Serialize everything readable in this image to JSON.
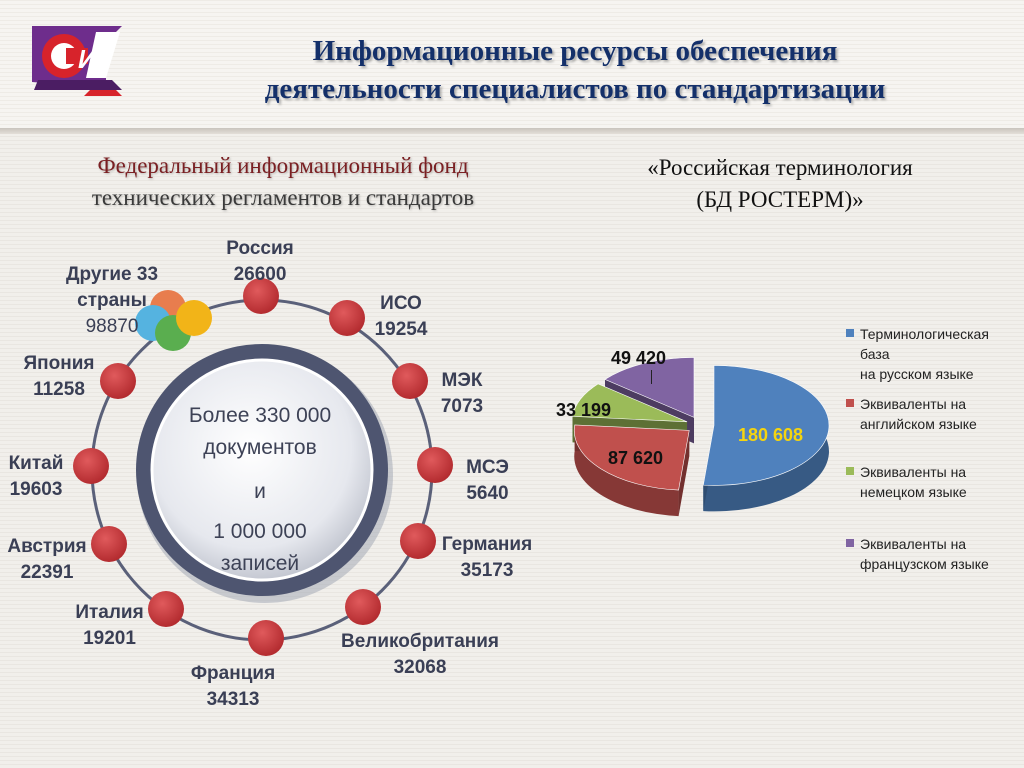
{
  "header": {
    "title_line1": "Информационные ресурсы обеспечения",
    "title_line2": "деятельности  специалистов по стандартизации",
    "logo_text": "СТИ"
  },
  "left": {
    "subtitle_line1": "Федеральный информационный фонд",
    "subtitle_line2": "технических регламентов и стандартов",
    "center_line1": "Более 330 000",
    "center_line2": "документов",
    "center_line3": "и",
    "center_line4": "1 000 000",
    "center_line5": "записей",
    "nodes": [
      {
        "name": "Россия",
        "value": "26600"
      },
      {
        "name": "ИСО",
        "value": "19254"
      },
      {
        "name": "МЭК",
        "value": "7073"
      },
      {
        "name": "МСЭ",
        "value": "5640"
      },
      {
        "name": "Германия",
        "value": "35173"
      },
      {
        "name": "Великобритания",
        "value": "32068"
      },
      {
        "name": "Франция",
        "value": "34313"
      },
      {
        "name": "Италия",
        "value": "19201"
      },
      {
        "name": "Австрия",
        "value": "22391"
      },
      {
        "name": "Китай",
        "value": "19603"
      },
      {
        "name": "Япония",
        "value": "11258"
      },
      {
        "name_line1": "Другие 33",
        "name_line2": "страны",
        "value": "98870"
      }
    ],
    "colors": {
      "node": "#c7393c",
      "ring": "#4e5570",
      "bubble_orange": "#e87d4e",
      "bubble_blue": "#55b3e0",
      "bubble_green": "#5aae4f",
      "bubble_yellow": "#f2b418"
    }
  },
  "right": {
    "subtitle_line1": "«Российская терминология",
    "subtitle_line2": "(БД РОСТЕРМ)»"
  },
  "chart_data": {
    "type": "pie",
    "values": [
      180608,
      87620,
      33199,
      49420
    ],
    "value_labels": [
      "180 608",
      "87 620",
      "33 199",
      "49 420"
    ],
    "legend": [
      {
        "lines": [
          "Терминологическая",
          "база",
          "на русском языке"
        ],
        "color": "#4f81bd"
      },
      {
        "lines": [
          "Эквиваленты на",
          "английском языке"
        ],
        "color": "#c0504d"
      },
      {
        "lines": [
          "Эквиваленты на",
          "немецком языке"
        ],
        "color": "#9bbb59"
      },
      {
        "lines": [
          "Эквиваленты на",
          "французском языке"
        ],
        "color": "#8064a2"
      }
    ],
    "legend_placement": "right",
    "style": "3d-exploded"
  }
}
